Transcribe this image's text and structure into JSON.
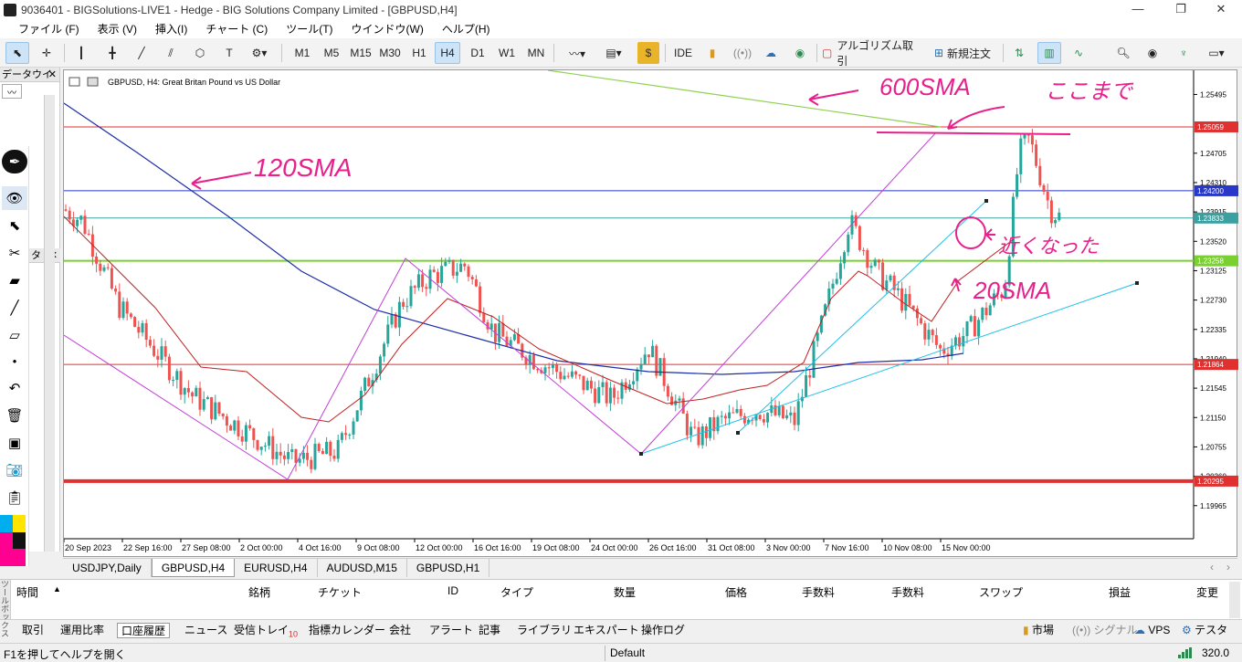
{
  "window": {
    "title": "9036401 - BIGSolutions-LIVE1 - Hedge - BIG Solutions Company Limited - [GBPUSD,H4]",
    "minimize": "—",
    "restore": "❐",
    "close": "✕"
  },
  "menu": [
    "ファイル (F)",
    "表示 (V)",
    "挿入(I)",
    "チャート (C)",
    "ツール(T)",
    "ウインドウ(W)",
    "ヘルプ(H)"
  ],
  "toolbar": {
    "timeframes": [
      "M1",
      "M5",
      "M15",
      "M30",
      "H1",
      "H4",
      "D1",
      "W1",
      "MN"
    ],
    "active_timeframe": "H4",
    "ide": "IDE",
    "algo": "アルゴリズム取引",
    "new_order": "新規注文"
  },
  "left_pane": {
    "header1": "データウイ",
    "header2": "タ",
    "close": "✕"
  },
  "chart": {
    "header": "GBPUSD, H4:  Great Britan Pound vs US Dollar",
    "price_labels": [
      "1.25495",
      "1.24705",
      "1.24310",
      "1.23915",
      "1.23520",
      "1.23125",
      "1.22730",
      "1.22335",
      "1.21940",
      "1.21545",
      "1.21150",
      "1.20755",
      "1.20360",
      "1.19965"
    ],
    "marked_prices": [
      {
        "value": "1.25059",
        "color": "#e03030"
      },
      {
        "value": "1.24200",
        "color": "#2838c8"
      },
      {
        "value": "1.23833",
        "color": "#3aa0a0"
      },
      {
        "value": "1.23258",
        "color": "#7ad030"
      },
      {
        "value": "1.21864",
        "color": "#e03030"
      },
      {
        "value": "1.20295",
        "color": "#e03030"
      }
    ],
    "time_labels": [
      "20 Sep 2023",
      "22 Sep 16:00",
      "27 Sep 08:00",
      "2 Oct 00:00",
      "4 Oct 16:00",
      "9 Oct 08:00",
      "12 Oct 00:00",
      "16 Oct 16:00",
      "19 Oct 08:00",
      "24 Oct 00:00",
      "26 Oct 16:00",
      "31 Oct 08:00",
      "3 Nov 00:00",
      "7 Nov 16:00",
      "10 Nov 08:00",
      "15 Nov 00:00"
    ],
    "annotations": [
      "600SMA",
      "ここまで",
      "120SMA",
      "近くなった",
      "20SMA"
    ]
  },
  "chart_tabs": [
    "USDJPY,Daily",
    "GBPUSD,H4",
    "EURUSD,H4",
    "AUDUSD,M15",
    "GBPUSD,H1"
  ],
  "active_chart_tab": "GBPUSD,H4",
  "columns": [
    "時間",
    "銘柄",
    "チケット",
    "ID",
    "タイプ",
    "数量",
    "価格",
    "手数料",
    "手数料",
    "スワップ",
    "損益",
    "変更"
  ],
  "bottom_tabs": [
    "取引",
    "運用比率",
    "口座履歴",
    "ニュース",
    "受信トレイ",
    "指標カレンダー",
    "会社",
    "アラート",
    "記事",
    "ライブラリ",
    "エキスパート",
    "操作ログ"
  ],
  "inbox_count": "10",
  "active_bottom_tab": "口座履歴",
  "bottom_right": [
    "市場",
    "シグナル",
    "VPS",
    "テスター"
  ],
  "side_label": "ツールボックス",
  "status": {
    "help": "F1を押してヘルプを開く",
    "profile": "Default",
    "ping": "320.0"
  }
}
